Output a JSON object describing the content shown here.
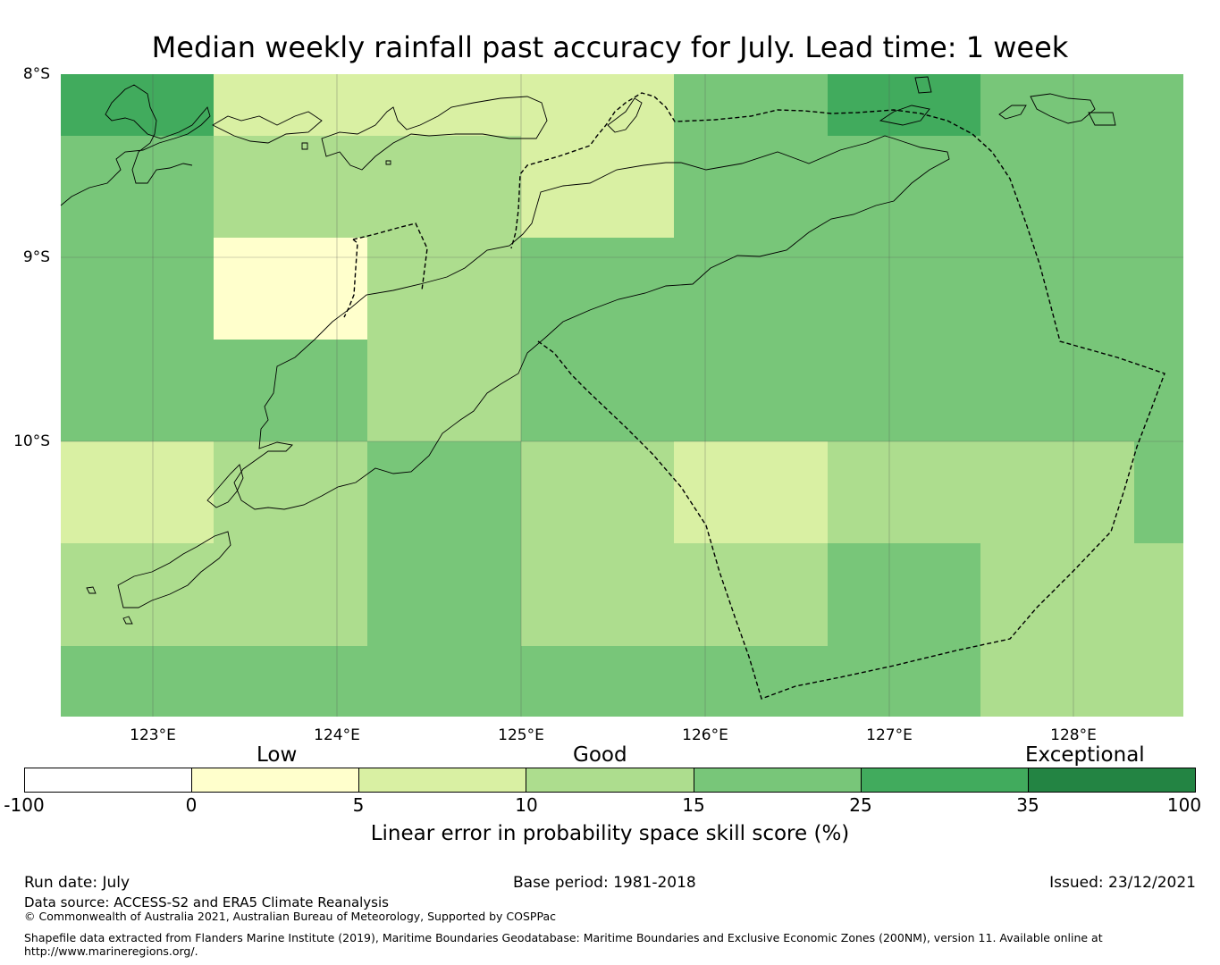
{
  "title": "Median weekly rainfall past accuracy for July. Lead time: 1 week",
  "map": {
    "lat_labels": [
      "8°S",
      "9°S",
      "10°S"
    ],
    "lon_labels": [
      "123°E",
      "124°E",
      "125°E",
      "126°E",
      "127°E",
      "128°E"
    ],
    "grid_values_pct": [
      [
        27,
        7,
        7,
        7,
        17,
        27,
        17
      ],
      [
        17,
        12,
        12,
        7,
        17,
        17,
        17
      ],
      [
        17,
        2,
        12,
        17,
        17,
        17,
        17
      ],
      [
        17,
        17,
        12,
        17,
        17,
        17,
        17
      ],
      [
        7,
        12,
        17,
        12,
        7,
        12,
        12
      ],
      [
        12,
        12,
        17,
        12,
        12,
        17,
        12
      ],
      [
        17,
        17,
        17,
        17,
        17,
        17,
        12
      ]
    ],
    "grid_values_note_last_column_row5": 17
  },
  "legend": {
    "categories": [
      "Low",
      "Good",
      "Exceptional"
    ],
    "ticks": [
      "-100",
      "0",
      "5",
      "10",
      "15",
      "25",
      "35",
      "100"
    ],
    "colors": [
      "#ffffff",
      "#ffffcc",
      "#d9f0a3",
      "#addd8e",
      "#78c679",
      "#41ab5d",
      "#238443"
    ],
    "label": "Linear error in probability space skill score (%)"
  },
  "footer": {
    "run_date": "Run date: July",
    "base_period": "Base period: 1981-2018",
    "issued": "Issued: 23/12/2021",
    "data_source": "Data source: ACCESS-S2 and ERA5 Climate Reanalysis",
    "copyright": "© Commonwealth of Australia 2021, Australian Bureau of Meteorology, Supported by COSPPac",
    "shapefile_line1": "Shapefile data extracted from Flanders Marine Institute (2019), Maritime Boundaries Geodatabase: Maritime Boundaries and Exclusive Economic Zones (200NM), version 11. Available online at",
    "shapefile_line2": "http://www.marineregions.org/."
  }
}
